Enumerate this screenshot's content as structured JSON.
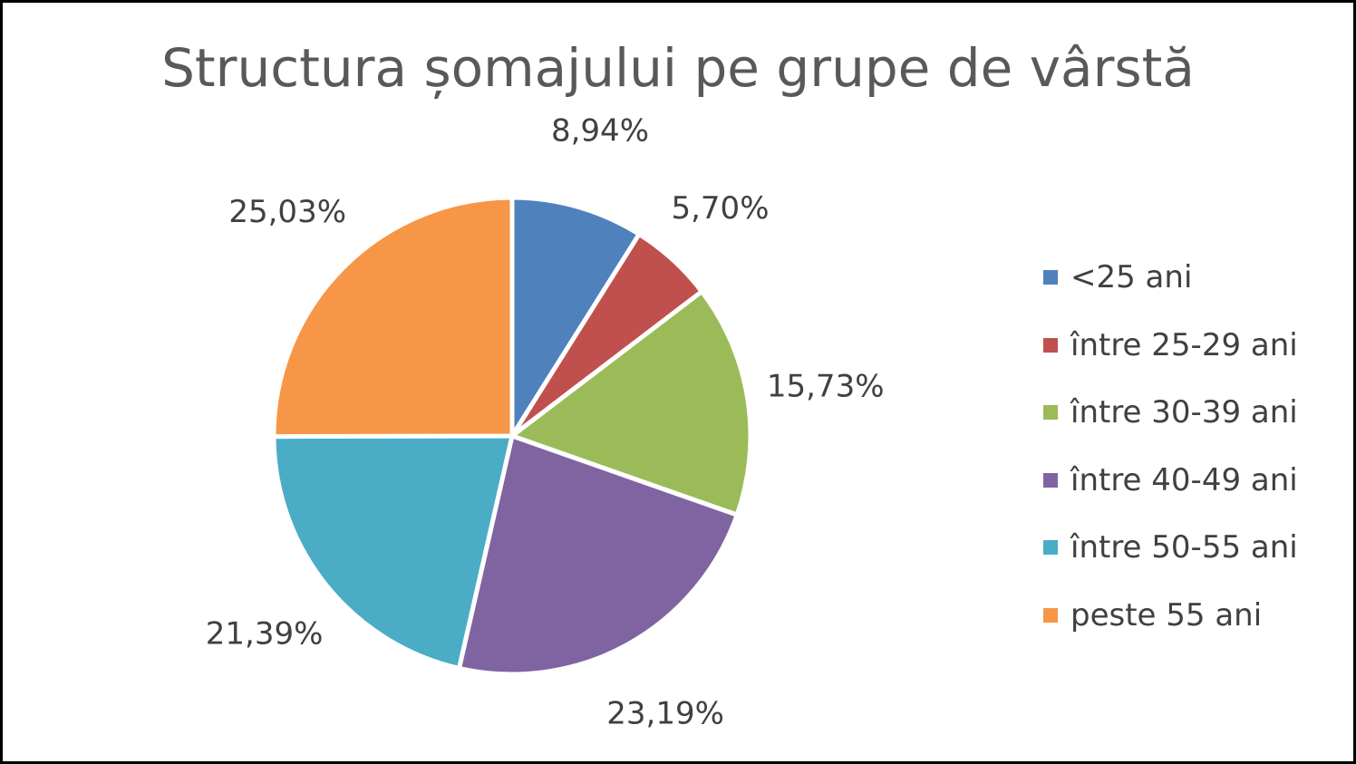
{
  "chart_data": {
    "type": "pie",
    "title": "Structura șomajului pe grupe de vârstă",
    "legend_position": "right",
    "slices": [
      {
        "label": "<25 ani",
        "value": 8.94,
        "display": "8,94%",
        "color": "#4F81BD"
      },
      {
        "label": "între 25-29 ani",
        "value": 5.7,
        "display": "5,70%",
        "color": "#C0504D"
      },
      {
        "label": "între 30-39 ani",
        "value": 15.73,
        "display": "15,73%",
        "color": "#9BBB59"
      },
      {
        "label": "între 40-49 ani",
        "value": 23.19,
        "display": "23,19%",
        "color": "#8064A2"
      },
      {
        "label": "între 50-55 ani",
        "value": 21.39,
        "display": "21,39%",
        "color": "#4BACC6"
      },
      {
        "label": "peste 55 ani",
        "value": 25.03,
        "display": "25,03%",
        "color": "#F79646"
      }
    ]
  }
}
